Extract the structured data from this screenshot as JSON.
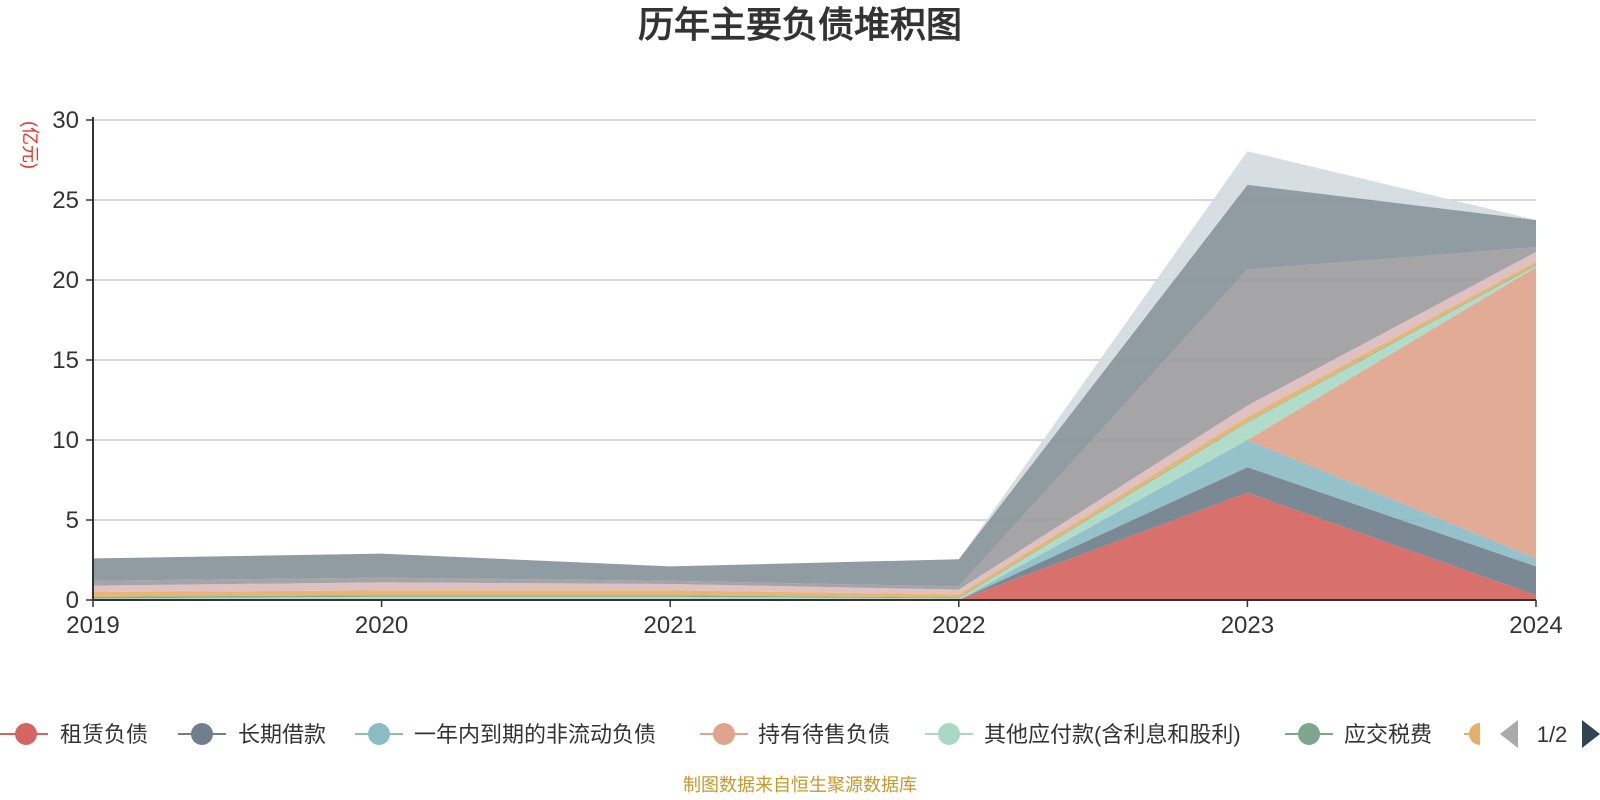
{
  "chart_data": {
    "type": "area",
    "stacked": true,
    "title": "历年主要负债堆积图",
    "unit_label": "(亿元)",
    "x": [
      "2019",
      "2020",
      "2021",
      "2022",
      "2023",
      "2024"
    ],
    "ylim": [
      0,
      30
    ],
    "yticks": [
      0,
      5,
      10,
      15,
      20,
      25,
      30
    ],
    "grid": true,
    "series": [
      {
        "name": "租赁负债",
        "color": "#d56560",
        "values": [
          0,
          0,
          0,
          0,
          6.7,
          0.3
        ]
      },
      {
        "name": "长期借款",
        "color": "#6f7f8b",
        "values": [
          0,
          0,
          0,
          0,
          1.6,
          1.8
        ]
      },
      {
        "name": "一年内到期的非流动负债",
        "color": "#8bbcc6",
        "values": [
          0,
          0,
          0,
          0,
          1.7,
          0.5
        ]
      },
      {
        "name": "持有待售负债",
        "color": "#e0a48d",
        "values": [
          0,
          0,
          0,
          0,
          0,
          18.2
        ]
      },
      {
        "name": "其他应付款(含利息和股利)",
        "color": "#a9d9c4",
        "values": [
          0.1,
          0.2,
          0.2,
          0.1,
          1.1,
          0.1
        ]
      },
      {
        "name": "应交税费",
        "color": "#7ea58e",
        "values": [
          0.1,
          0.1,
          0.1,
          0.05,
          0.05,
          0.05
        ]
      },
      {
        "name": "",
        "color": "#e5b066",
        "values": [
          0.3,
          0.3,
          0.3,
          0.2,
          0.3,
          0.2
        ]
      },
      {
        "name": "",
        "color": "#dcbcbc",
        "values": [
          0.4,
          0.5,
          0.4,
          0.3,
          0.7,
          0.6
        ]
      },
      {
        "name": "",
        "color": "#9d9d9f",
        "values": [
          0.3,
          0.3,
          0.2,
          0.2,
          8.5,
          0.3
        ]
      },
      {
        "name": "",
        "color": "#87949a",
        "values": [
          1.4,
          1.5,
          0.9,
          1.7,
          5.3,
          1.7
        ]
      },
      {
        "name": "",
        "color": "#d4dbe1",
        "values": [
          0,
          0,
          0,
          0,
          2.1,
          0
        ]
      }
    ],
    "legend": {
      "position": "bottom",
      "page": "1/2"
    },
    "source": "制图数据来自恒生聚源数据库"
  }
}
